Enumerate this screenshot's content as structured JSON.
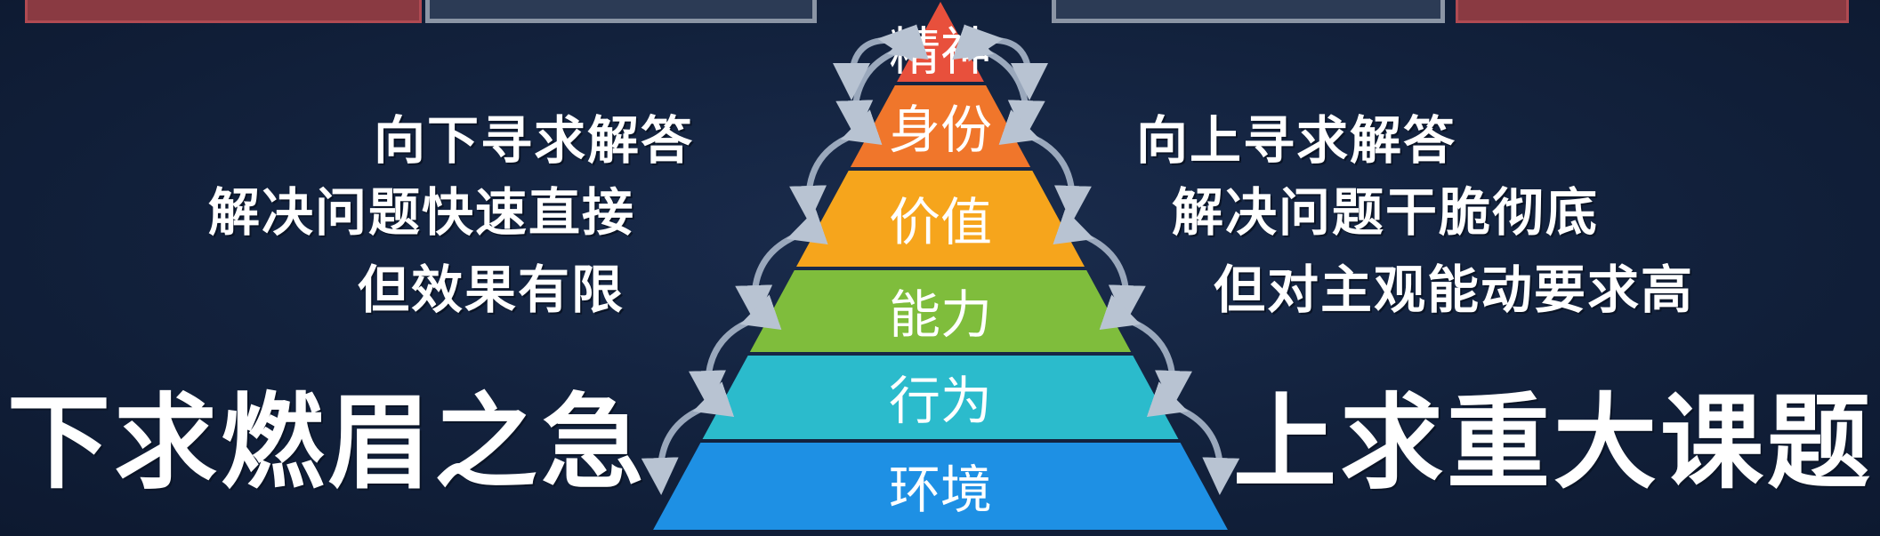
{
  "pyramid": {
    "levels": [
      {
        "label": "精神",
        "color": "#e8503c"
      },
      {
        "label": "身份",
        "color": "#f0762b"
      },
      {
        "label": "价值",
        "color": "#f6a51c"
      },
      {
        "label": "能力",
        "color": "#7fbd3c"
      },
      {
        "label": "行为",
        "color": "#2bbbcc"
      },
      {
        "label": "环境",
        "color": "#1e90e4"
      }
    ]
  },
  "left": {
    "lines": [
      "向下寻求解答",
      "解决问题快速直接",
      "但效果有限"
    ],
    "headline": "下求燃眉之急"
  },
  "right": {
    "lines": [
      "向上寻求解答",
      "解决问题干脆彻底",
      "但对主观能动要求高"
    ],
    "headline": "上求重大课题"
  },
  "colors": {
    "background": "#11203a",
    "arrow": "#9aa8bc"
  }
}
